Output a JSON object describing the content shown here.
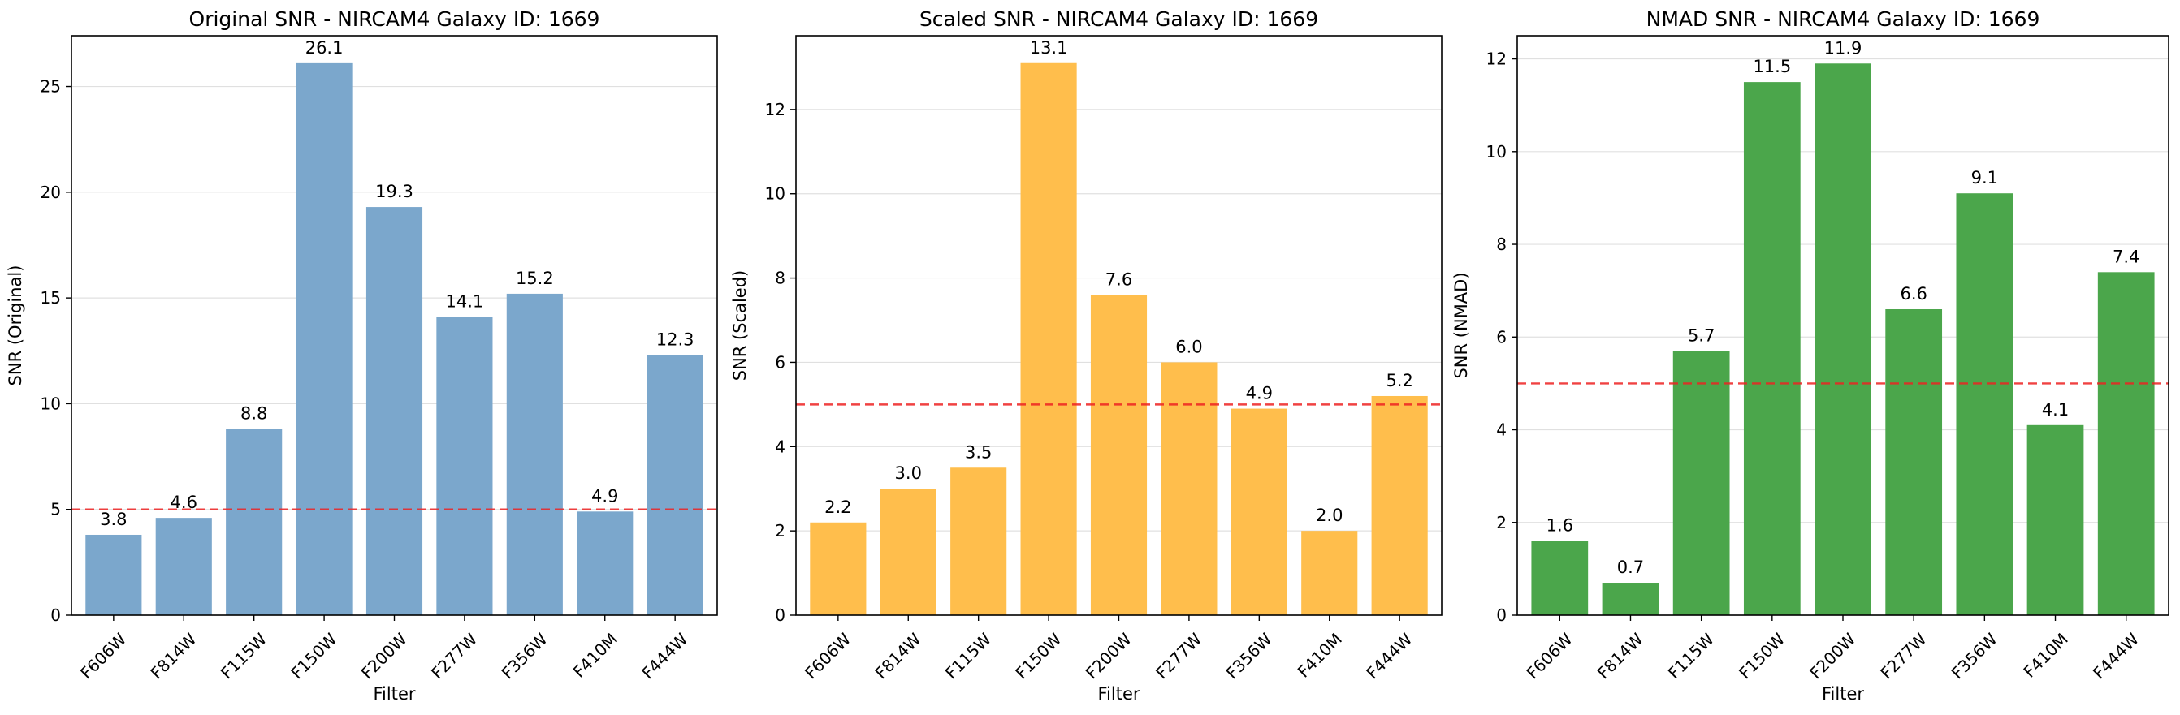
{
  "chart_data": [
    {
      "type": "bar",
      "title": "Original SNR - NIRCAM4 Galaxy ID: 1669",
      "xlabel": "Filter",
      "ylabel": "SNR (Original)",
      "categories": [
        "F606W",
        "F814W",
        "F115W",
        "F150W",
        "F200W",
        "F277W",
        "F356W",
        "F410M",
        "F444W"
      ],
      "values": [
        3.8,
        4.6,
        8.8,
        26.1,
        19.3,
        14.1,
        15.2,
        4.9,
        12.3
      ],
      "value_labels": [
        "3.8",
        "4.6",
        "8.8",
        "26.1",
        "19.3",
        "14.1",
        "15.2",
        "4.9",
        "12.3"
      ],
      "ylim": [
        0,
        27.4
      ],
      "yticks": [
        0,
        5,
        10,
        15,
        20,
        25
      ],
      "threshold": 5,
      "color": "#7ba7cc",
      "threshold_color": "#ee2222",
      "grid": "y"
    },
    {
      "type": "bar",
      "title": "Scaled SNR - NIRCAM4 Galaxy ID: 1669",
      "xlabel": "Filter",
      "ylabel": "SNR (Scaled)",
      "categories": [
        "F606W",
        "F814W",
        "F115W",
        "F150W",
        "F200W",
        "F277W",
        "F356W",
        "F410M",
        "F444W"
      ],
      "values": [
        2.2,
        3.0,
        3.5,
        13.1,
        7.6,
        6.0,
        4.9,
        2.0,
        5.2
      ],
      "value_labels": [
        "2.2",
        "3.0",
        "3.5",
        "13.1",
        "7.6",
        "6.0",
        "4.9",
        "2.0",
        "5.2"
      ],
      "ylim": [
        0,
        13.75
      ],
      "yticks": [
        0,
        2,
        4,
        6,
        8,
        10,
        12
      ],
      "threshold": 5,
      "color": "#ffbe4c",
      "threshold_color": "#ee2222",
      "grid": "y"
    },
    {
      "type": "bar",
      "title": "NMAD SNR - NIRCAM4 Galaxy ID: 1669",
      "xlabel": "Filter",
      "ylabel": "SNR (NMAD)",
      "categories": [
        "F606W",
        "F814W",
        "F115W",
        "F150W",
        "F200W",
        "F277W",
        "F356W",
        "F410M",
        "F444W"
      ],
      "values": [
        1.6,
        0.7,
        5.7,
        11.5,
        11.9,
        6.6,
        9.1,
        4.1,
        7.4
      ],
      "value_labels": [
        "1.6",
        "0.7",
        "5.7",
        "11.5",
        "11.9",
        "6.6",
        "9.1",
        "4.1",
        "7.4"
      ],
      "ylim": [
        0,
        12.5
      ],
      "yticks": [
        0,
        2,
        4,
        6,
        8,
        10,
        12
      ],
      "threshold": 5,
      "color": "#4ba64b",
      "threshold_color": "#ee2222",
      "grid": "y"
    }
  ]
}
